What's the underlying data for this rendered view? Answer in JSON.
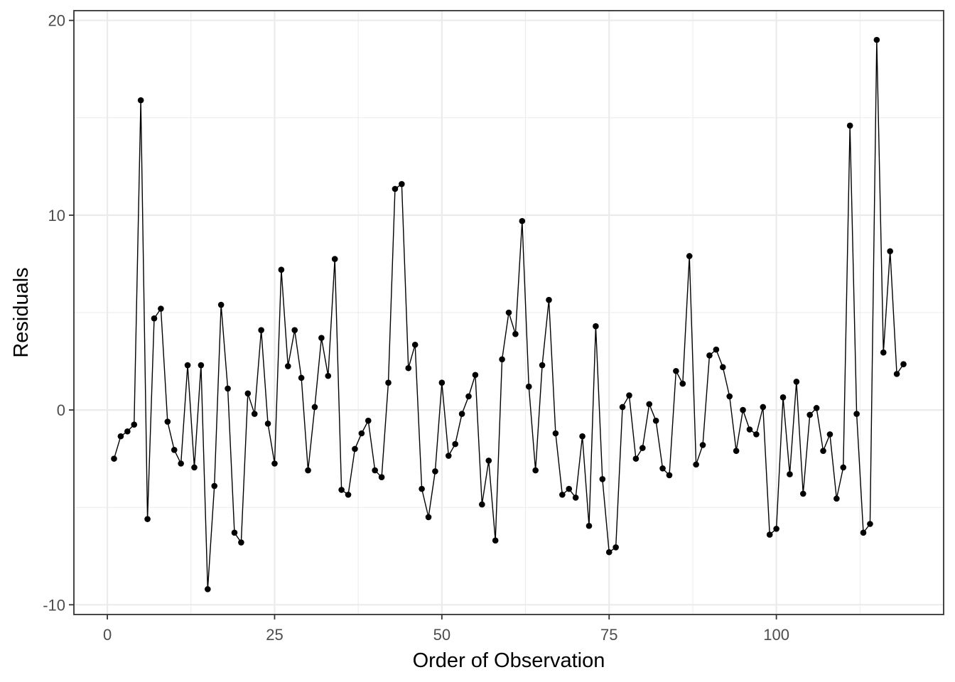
{
  "chart_data": {
    "type": "line",
    "title": "",
    "xlabel": "Order of Observation",
    "ylabel": "Residuals",
    "xlim": [
      -5,
      125
    ],
    "ylim": [
      -10.5,
      20.5
    ],
    "x_ticks": [
      0,
      25,
      50,
      75,
      100
    ],
    "x_tick_labels": [
      "0",
      "25",
      "50",
      "75",
      "100"
    ],
    "y_ticks": [
      -10,
      0,
      10,
      20
    ],
    "y_tick_labels": [
      "-10",
      "0",
      "10",
      "20"
    ],
    "x_minor_ticks": [
      12.5,
      37.5,
      62.5,
      87.5,
      112.5
    ],
    "y_minor_ticks": [
      -5,
      5,
      15
    ],
    "grid": true,
    "legend": "none",
    "colors": {
      "points": "#000000",
      "line": "#000000",
      "grid": "#ebebeb",
      "panel_border": "#333333",
      "tick_label": "#4d4d4d"
    },
    "series": [
      {
        "x": [
          1,
          2,
          3,
          4,
          5,
          6,
          7,
          8,
          9,
          10,
          11,
          12,
          13,
          14,
          15,
          16,
          17,
          18,
          19,
          20,
          21,
          22,
          23,
          24,
          25,
          26,
          27,
          28,
          29,
          30,
          31,
          32,
          33,
          34,
          35,
          36,
          37,
          38,
          39,
          40,
          41,
          42,
          43,
          44,
          45,
          46,
          47,
          48,
          49,
          50,
          51,
          52,
          53,
          54,
          55,
          56,
          57,
          58,
          59,
          60,
          61,
          62,
          63,
          64,
          65,
          66,
          67,
          68,
          69,
          70,
          71,
          72,
          73,
          74,
          75,
          76,
          77,
          78,
          79,
          80,
          81,
          82,
          83,
          84,
          85,
          86,
          87,
          88,
          89,
          90,
          91,
          92,
          93,
          94,
          95,
          96,
          97,
          98,
          99,
          100,
          101,
          102,
          103,
          104,
          105,
          106,
          107,
          108,
          109,
          110,
          111,
          112,
          113,
          114,
          115,
          116,
          117,
          118,
          119
        ],
        "y": [
          -2.5,
          -1.35,
          -1.1,
          -0.75,
          15.9,
          -5.6,
          4.7,
          5.2,
          -0.6,
          -2.05,
          -2.75,
          2.3,
          -2.95,
          2.3,
          -9.2,
          -3.9,
          5.4,
          1.1,
          -6.3,
          -6.8,
          0.85,
          -0.2,
          4.1,
          -0.7,
          -2.75,
          7.2,
          2.25,
          4.1,
          1.65,
          -3.1,
          0.15,
          3.7,
          1.75,
          7.75,
          -4.1,
          -4.35,
          -2.0,
          -1.2,
          -0.55,
          -3.1,
          -3.45,
          1.4,
          11.35,
          11.6,
          2.15,
          3.35,
          -4.05,
          -5.5,
          -3.15,
          1.4,
          -2.35,
          -1.75,
          -0.2,
          0.7,
          1.8,
          -4.85,
          -2.6,
          -6.7,
          2.6,
          5.0,
          3.9,
          9.7,
          1.2,
          -3.1,
          2.3,
          5.65,
          -1.2,
          -4.35,
          -4.05,
          -4.5,
          -1.35,
          -5.95,
          4.3,
          -3.55,
          -7.3,
          -7.05,
          0.15,
          0.75,
          -2.5,
          -1.95,
          0.3,
          -0.55,
          -3.0,
          -3.35,
          2.0,
          1.35,
          7.9,
          -2.8,
          -1.8,
          2.8,
          3.1,
          2.2,
          0.7,
          -2.1,
          0.0,
          -1.0,
          -1.25,
          0.15,
          -6.4,
          -6.1,
          0.65,
          -3.3,
          1.45,
          -4.3,
          -0.25,
          0.1,
          -2.1,
          -1.25,
          -4.55,
          -2.95,
          14.6,
          -0.2,
          -6.3,
          -5.85,
          19.0,
          2.95,
          8.15,
          1.85,
          2.35
        ]
      }
    ]
  }
}
